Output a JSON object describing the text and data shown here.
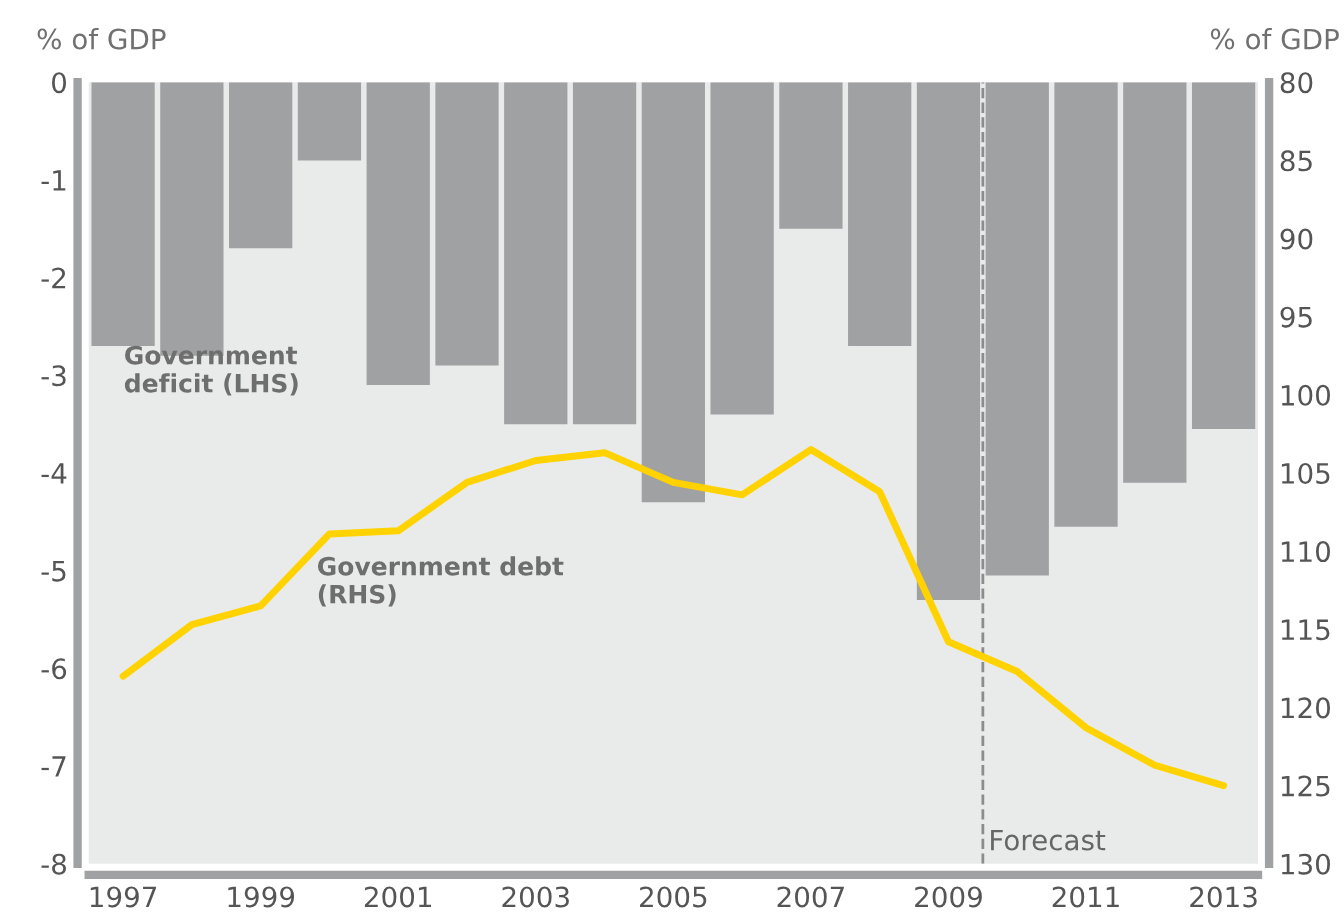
{
  "chart_data": {
    "type": "bar",
    "xlabel": null,
    "ylabel": "% of GDP",
    "y2label": "% of GDP",
    "x": [
      1997,
      1998,
      1999,
      2000,
      2001,
      2002,
      2003,
      2004,
      2005,
      2006,
      2007,
      2008,
      2009,
      2010,
      2011,
      2012,
      2013
    ],
    "xlim": [
      1996.5,
      2013.5
    ],
    "xticks": [
      1997,
      1999,
      2001,
      2003,
      2005,
      2007,
      2009,
      2011,
      2013
    ],
    "ylim": [
      -8,
      0
    ],
    "yticks": [
      0,
      -1,
      -2,
      -3,
      -4,
      -5,
      -6,
      -7,
      -8
    ],
    "y2lim": [
      130,
      80
    ],
    "y2ticks": [
      80,
      85,
      90,
      95,
      100,
      105,
      110,
      115,
      120,
      125,
      130
    ],
    "series": [
      {
        "color": "#a0a1a3",
        "values": [
          -2.7,
          -2.8,
          -1.7,
          -0.8,
          -3.1,
          -2.9,
          -3.5,
          -3.5,
          -4.3,
          -3.4,
          -1.5,
          -2.7,
          -5.3,
          -5.05,
          -4.55,
          -4.1,
          -3.55
        ]
      },
      {
        "type": "line",
        "axis": "y2",
        "color": "#ffd200",
        "values": [
          118.0,
          114.7,
          113.5,
          108.9,
          108.7,
          105.6,
          104.2,
          103.7,
          105.6,
          106.4,
          103.5,
          106.2,
          115.8,
          117.7,
          121.3,
          123.7,
          125.0
        ]
      }
    ],
    "ref_lines": [
      {
        "axis": "x",
        "value": 2009.5,
        "label": "Forecast",
        "color": "#8c8c8c",
        "line_style": "dashed"
      }
    ],
    "annotations": [
      "Government\ndeficit (LHS)",
      "Government debt\n(RHS)"
    ],
    "grid": false
  }
}
